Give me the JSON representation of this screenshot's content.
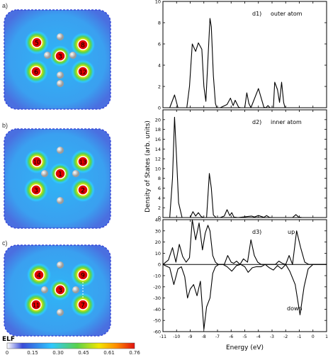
{
  "panels": {
    "a": {
      "label": "a)",
      "atoms": [
        {
          "id": "5",
          "pos": "top-left"
        },
        {
          "id": "8",
          "pos": "top-right"
        },
        {
          "id": "3",
          "pos": "center"
        },
        {
          "id": "6",
          "pos": "bottom-left"
        },
        {
          "id": "12",
          "pos": "bottom-right"
        }
      ]
    },
    "b": {
      "label": "b)",
      "atoms": [
        {
          "id": "10",
          "pos": "top-left"
        },
        {
          "id": "13",
          "pos": "top-right"
        },
        {
          "id": "1",
          "pos": "center"
        },
        {
          "id": "3",
          "pos": "bottom-left"
        },
        {
          "id": "2",
          "pos": "bottom-right"
        }
      ]
    },
    "c": {
      "label": "c)",
      "atoms": [
        {
          "id": "4",
          "pos": "top-left"
        },
        {
          "id": "9",
          "pos": "top-right"
        },
        {
          "id": "3",
          "pos": "center"
        },
        {
          "id": "11",
          "pos": "bottom-left"
        },
        {
          "id": "7",
          "pos": "bottom-right"
        }
      ]
    }
  },
  "colorbar": {
    "title": "ELF",
    "ticks": [
      "0",
      "0.15",
      "0.30",
      "0.45",
      "0.61",
      "0.76"
    ],
    "colors": [
      "#ffffff",
      "#3a4bd8",
      "#2ec8ff",
      "#5ad24a",
      "#f2e600",
      "#ff8a00",
      "#e01010"
    ]
  },
  "chart_data": [
    {
      "type": "line",
      "panel_label": "d1)",
      "annotation": "outer atom",
      "xlim": [
        -11,
        1
      ],
      "ylim": [
        0,
        10
      ],
      "yticks": [
        0,
        2,
        4,
        6,
        8,
        10
      ],
      "series": [
        {
          "x": [
            -11,
            -10.5,
            -10.15,
            -9.9,
            -9.6,
            -9.25,
            -9.05,
            -8.85,
            -8.6,
            -8.4,
            -8.15,
            -8.0,
            -7.85,
            -7.55,
            -7.45,
            -7.3,
            -7.15,
            -7.05,
            -6.95,
            -6.8,
            -6.3,
            -6.05,
            -5.85,
            -5.7,
            -5.45,
            -5.3,
            -5.0,
            -4.85,
            -4.7,
            -4.55,
            -4.0,
            -3.6,
            -3.45,
            -3.3,
            -3.15,
            -3.05,
            -2.9,
            -2.8,
            -2.6,
            -2.45,
            -2.3,
            -2.15,
            -2.05,
            -1.9,
            -1.5,
            -1.05,
            -0.9,
            -0.7,
            -0.55,
            -0.35,
            -0.2,
            -0.05,
            0.1,
            0.4,
            1.0
          ],
          "y": [
            0,
            0,
            1.2,
            0,
            0,
            0,
            2.0,
            6.0,
            5.3,
            6.1,
            5.5,
            2.0,
            0.6,
            8.4,
            7.6,
            3.0,
            0.4,
            0,
            0,
            0,
            0.3,
            0.9,
            0.2,
            0.7,
            0.05,
            0,
            0,
            1.4,
            0.4,
            0,
            1.8,
            0.05,
            0,
            0.2,
            0,
            0,
            0,
            2.4,
            1.7,
            0.5,
            2.4,
            0.5,
            0,
            0,
            0,
            0,
            0,
            0,
            0,
            0,
            0,
            0,
            0,
            0,
            0
          ]
        }
      ]
    },
    {
      "type": "line",
      "panel_label": "d2)",
      "annotation": "inner atom",
      "xlim": [
        -11,
        1
      ],
      "ylim": [
        0,
        22
      ],
      "yticks": [
        0,
        2,
        4,
        6,
        8,
        10,
        12,
        14,
        16,
        18,
        20
      ],
      "series": [
        {
          "x": [
            -11,
            -10.5,
            -10.3,
            -10.15,
            -10.0,
            -9.85,
            -9.6,
            -9.0,
            -8.8,
            -8.6,
            -8.4,
            -8.2,
            -8.0,
            -7.8,
            -7.6,
            -7.45,
            -7.3,
            -7.1,
            -6.8,
            -6.5,
            -6.3,
            -6.1,
            -5.95,
            -5.8,
            -5.5,
            -4.5,
            -4.3,
            -4.0,
            -3.6,
            -3.4,
            -3.2,
            -3.0,
            -2.8,
            -2.6,
            -1.5,
            -1.25,
            -1.05,
            -0.8,
            -0.6,
            -0.4,
            0.0,
            1.0
          ],
          "y": [
            0,
            0,
            8.0,
            20.5,
            12.0,
            3.0,
            0,
            0,
            1.2,
            0.3,
            1.0,
            0.2,
            0,
            0,
            9.0,
            6.0,
            0.5,
            0,
            0,
            0.3,
            1.6,
            0.4,
            1.0,
            0.1,
            0,
            0.3,
            0.1,
            0.4,
            0.05,
            0.4,
            0.05,
            0,
            0,
            0,
            0,
            0.6,
            0.1,
            0,
            0,
            0,
            0,
            0
          ]
        }
      ]
    },
    {
      "type": "line",
      "panel_label": "d3)",
      "annotations": {
        "up": "up",
        "down": "down"
      },
      "xlim": [
        -11,
        1
      ],
      "ylim": [
        -60,
        40
      ],
      "yticks": [
        40,
        30,
        20,
        10,
        0,
        -10,
        -20,
        -30,
        -40,
        -50,
        -60
      ],
      "series": [
        {
          "x": [
            -11,
            -10.6,
            -10.3,
            -10.05,
            -9.8,
            -9.55,
            -9.3,
            -9.05,
            -8.85,
            -8.6,
            -8.35,
            -8.1,
            -7.9,
            -7.7,
            -7.55,
            -7.35,
            -7.15,
            -6.95,
            -6.75,
            -6.5,
            -6.25,
            -6.0,
            -5.8,
            -5.6,
            -5.35,
            -5.1,
            -4.8,
            -4.55,
            -4.3,
            -4.05,
            -3.8,
            -3.55,
            -3.3,
            -3.0,
            -2.75,
            -2.5,
            -2.25,
            -2.0,
            -1.75,
            -1.5,
            -1.2,
            -0.9,
            -0.6,
            -0.3,
            0.0,
            1.0
          ],
          "y": [
            0,
            4,
            15,
            2,
            18,
            7,
            2,
            6,
            40,
            22,
            37,
            13,
            28,
            35,
            30,
            8,
            2,
            0,
            0,
            0,
            8,
            2,
            1,
            3,
            0,
            5,
            2,
            22,
            8,
            2,
            0,
            0,
            0,
            0,
            0,
            3,
            1,
            0,
            8,
            0,
            30,
            15,
            2,
            0,
            0,
            0
          ]
        },
        {
          "x": [
            -11,
            -10.5,
            -10.2,
            -9.9,
            -9.65,
            -9.4,
            -9.2,
            -9.0,
            -8.75,
            -8.5,
            -8.25,
            -8.0,
            -7.8,
            -7.55,
            -7.35,
            -7.15,
            -6.9,
            -6.6,
            -6.3,
            -5.95,
            -5.6,
            -5.3,
            -5.0,
            -4.75,
            -4.45,
            -4.15,
            -3.8,
            -3.5,
            -3.2,
            -2.9,
            -2.6,
            -2.3,
            -2.0,
            -1.7,
            -1.3,
            -0.95,
            -0.65,
            -0.35,
            0.0,
            1.0
          ],
          "y": [
            0,
            -3,
            -18,
            -4,
            -2,
            -11,
            -30,
            -22,
            -18,
            -28,
            -15,
            -58,
            -38,
            -30,
            -8,
            -2,
            0,
            0,
            -2,
            -6,
            -1,
            0,
            -2,
            -7,
            -3,
            -2,
            -2,
            0,
            -3,
            -5,
            -1,
            -4,
            0,
            -6,
            -18,
            -45,
            -20,
            -4,
            0,
            0
          ]
        }
      ]
    }
  ],
  "axes": {
    "ylabel": "Density of States (arb. units)",
    "xlabel": "Energy (eV)",
    "xticks": [
      -11,
      -10,
      -9,
      -8,
      -7,
      -6,
      -5,
      -4,
      -3,
      -2,
      -1,
      0,
      1
    ]
  }
}
